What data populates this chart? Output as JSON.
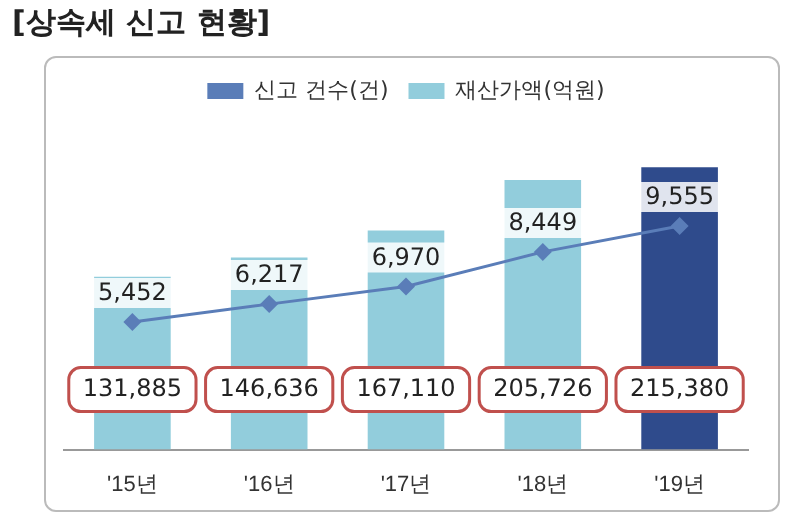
{
  "chart_data": {
    "type": "bar",
    "title": "[상속세 신고 현황]",
    "categories": [
      "'15년",
      "'16년",
      "'17년",
      "'18년",
      "'19년"
    ],
    "series": [
      {
        "name": "신고 건수(건)",
        "type": "line",
        "axis": "y2",
        "color": "#5a7db8",
        "values": [
          5452,
          6217,
          6970,
          8449,
          9555
        ],
        "value_labels": [
          "5,452",
          "6,217",
          "6,970",
          "8,449",
          "9,555"
        ]
      },
      {
        "name": "재산가액(억원)",
        "type": "bar",
        "color": "#92cddc",
        "colors": [
          "#92cddc",
          "#92cddc",
          "#92cddc",
          "#92cddc",
          "#2f4b8c"
        ],
        "values": [
          131885,
          146636,
          167110,
          205726,
          215380
        ],
        "value_labels": [
          "131,885",
          "146,636",
          "167,110",
          "205,726",
          "215,380"
        ]
      }
    ],
    "data_labels": true,
    "legend": "top",
    "grid": false,
    "marker": "diamond"
  }
}
